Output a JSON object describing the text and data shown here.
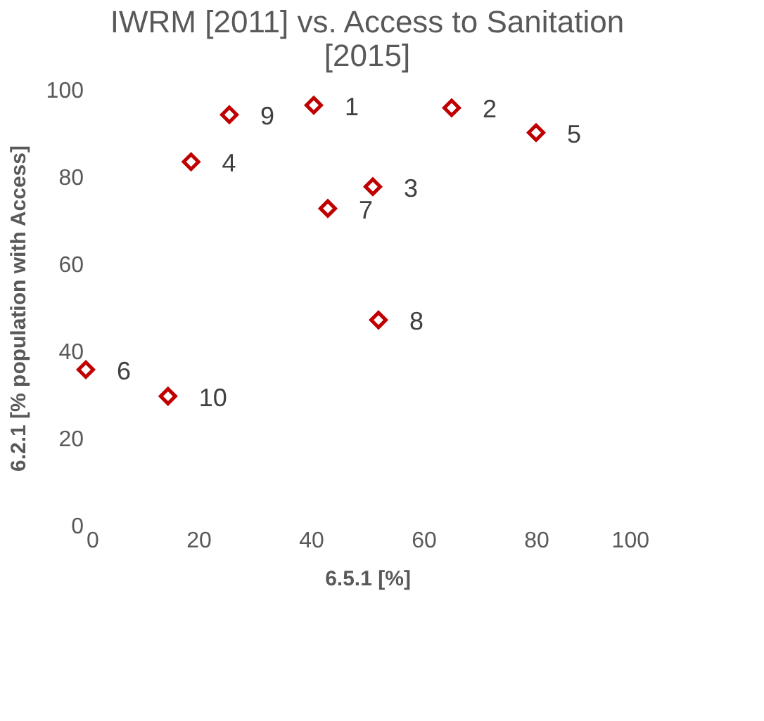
{
  "chart_data": {
    "type": "scatter",
    "title": "IWRM [2011] vs. Access to Sanitation [2015]",
    "xlabel": "6.5.1 [%]",
    "ylabel": "6.2.1 [% population with Access]",
    "x": [
      40.5,
      65,
      51,
      18.7,
      80,
      0,
      43,
      52,
      25.5,
      14.6
    ],
    "series": [
      {
        "color": "#c00000",
        "values": [
          96.5,
          95.9,
          77.8,
          83.5,
          90.2,
          35.8,
          72.8,
          47.2,
          94.3,
          29.7
        ]
      }
    ],
    "marker": "diamond",
    "grid": false,
    "xlim": [
      0,
      100
    ],
    "xticks": [
      0,
      20,
      40,
      60,
      80,
      100
    ],
    "ylim": [
      0,
      100
    ],
    "yticks": [
      0,
      20,
      40,
      60,
      80,
      100
    ],
    "annotations": [
      {
        "text": "1",
        "x": 40.5,
        "y": 96.5
      },
      {
        "text": "2",
        "x": 65,
        "y": 95.9
      },
      {
        "text": "3",
        "x": 51,
        "y": 77.8
      },
      {
        "text": "4",
        "x": 18.7,
        "y": 83.5
      },
      {
        "text": "5",
        "x": 80,
        "y": 90.2
      },
      {
        "text": "6",
        "x": 0,
        "y": 35.8
      },
      {
        "text": "7",
        "x": 43,
        "y": 72.8
      },
      {
        "text": "8",
        "x": 52,
        "y": 47.2
      },
      {
        "text": "9",
        "x": 25.5,
        "y": 94.3
      },
      {
        "text": "10",
        "x": 14.6,
        "y": 29.7
      }
    ]
  }
}
